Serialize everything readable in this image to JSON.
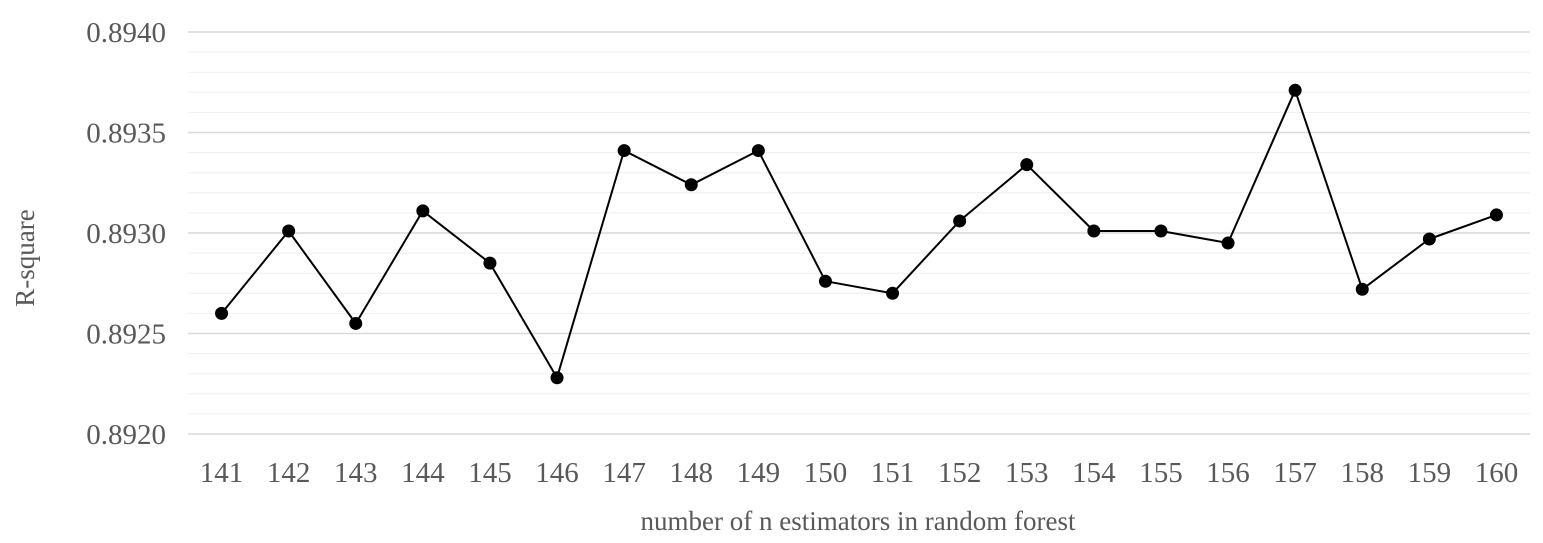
{
  "chart_data": {
    "type": "line",
    "title": "",
    "xlabel": "number of n estimators in random forest",
    "ylabel": "R-square",
    "categories": [
      "141",
      "142",
      "143",
      "144",
      "145",
      "146",
      "147",
      "148",
      "149",
      "150",
      "151",
      "152",
      "153",
      "154",
      "155",
      "156",
      "157",
      "158",
      "159",
      "160"
    ],
    "series": [
      {
        "values": [
          0.8926,
          0.89301,
          0.89255,
          0.89311,
          0.89285,
          0.89228,
          0.89341,
          0.89324,
          0.89341,
          0.89276,
          0.8927,
          0.89306,
          0.89334,
          0.89301,
          0.89301,
          0.89295,
          0.89371,
          0.89272,
          0.89297,
          0.89309
        ],
        "color": "#000000"
      }
    ],
    "ylim": [
      0.892,
      0.894
    ],
    "yticks": [
      "0.8920",
      "0.8925",
      "0.8930",
      "0.8935",
      "0.8940"
    ],
    "ytick_values": [
      0.892,
      0.8925,
      0.893,
      0.8935,
      0.894
    ],
    "grid": true,
    "minor_grid": true,
    "legend": "none",
    "gridline_color": "#d9d9d9",
    "minor_gridline_color": "#efefef"
  }
}
